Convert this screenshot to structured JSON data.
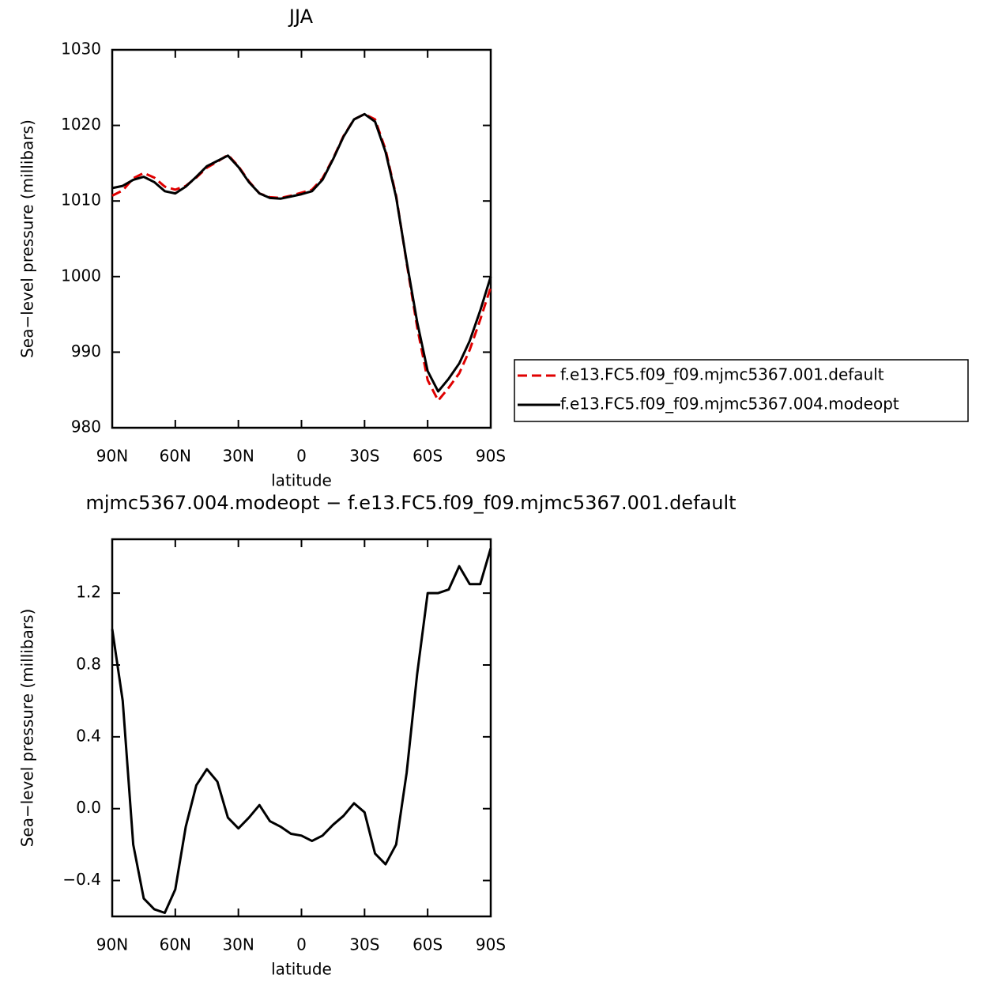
{
  "chart_data": [
    {
      "type": "line",
      "title": "JJA",
      "xlabel": "latitude",
      "ylabel": "Sea−level pressure (millibars)",
      "x": [
        90,
        85,
        80,
        75,
        70,
        65,
        60,
        55,
        50,
        45,
        40,
        35,
        30,
        25,
        20,
        15,
        10,
        5,
        0,
        -5,
        -10,
        -15,
        -20,
        -25,
        -30,
        -35,
        -40,
        -45,
        -50,
        -55,
        -60,
        -65,
        -70,
        -75,
        -80,
        -85,
        -90
      ],
      "xlim": [
        90,
        -90
      ],
      "xticks": [
        {
          "value": 90,
          "label": "90N"
        },
        {
          "value": 60,
          "label": "60N"
        },
        {
          "value": 30,
          "label": "30N"
        },
        0,
        {
          "value": -30,
          "label": "30S"
        },
        {
          "value": -60,
          "label": "60S"
        },
        {
          "value": -90,
          "label": "90S"
        }
      ],
      "ylim": [
        980,
        1030
      ],
      "yticks": [
        980,
        990,
        1000,
        1010,
        1020,
        1030
      ],
      "legend": "right",
      "series": [
        {
          "name": "f.e13.FC5.f09_f09.mjmc5367.001.default",
          "color": "#e00000",
          "style": "dashed",
          "values": [
            1010.7,
            1011.4,
            1013.0,
            1013.7,
            1013.1,
            1011.9,
            1011.5,
            1012.0,
            1013.1,
            1014.4,
            1015.2,
            1016.1,
            1014.6,
            1012.6,
            1011.0,
            1010.5,
            1010.4,
            1010.7,
            1011.1,
            1011.5,
            1013.0,
            1015.6,
            1018.6,
            1020.8,
            1021.5,
            1020.8,
            1016.8,
            1010.7,
            1001.8,
            993.3,
            986.3,
            983.6,
            985.3,
            987.2,
            990.3,
            994.3,
            998.6
          ]
        },
        {
          "name": "f.e13.FC5.f09_f09.mjmc5367.004.modeopt",
          "color": "#000000",
          "style": "solid",
          "values": [
            1011.7,
            1012.0,
            1012.8,
            1013.2,
            1012.5,
            1011.3,
            1011.0,
            1011.9,
            1013.2,
            1014.6,
            1015.3,
            1016.0,
            1014.5,
            1012.5,
            1011.0,
            1010.4,
            1010.3,
            1010.6,
            1010.9,
            1011.3,
            1012.8,
            1015.5,
            1018.5,
            1020.8,
            1021.5,
            1020.5,
            1016.5,
            1010.5,
            1002.0,
            994.0,
            987.5,
            984.8,
            986.5,
            988.5,
            991.5,
            995.5,
            1000.0
          ]
        }
      ]
    },
    {
      "type": "line",
      "title": "mjmc5367.004.modeopt − f.e13.FC5.f09_f09.mjmc5367.001.default",
      "xlabel": "latitude",
      "ylabel": "Sea−level pressure (millibars)",
      "x": [
        90,
        85,
        80,
        75,
        70,
        65,
        60,
        55,
        50,
        45,
        40,
        35,
        30,
        25,
        20,
        15,
        10,
        5,
        0,
        -5,
        -10,
        -15,
        -20,
        -25,
        -30,
        -35,
        -40,
        -45,
        -50,
        -55,
        -60,
        -65,
        -70,
        -75,
        -80,
        -85,
        -90
      ],
      "xlim": [
        90,
        -90
      ],
      "xticks": [
        {
          "value": 90,
          "label": "90N"
        },
        {
          "value": 60,
          "label": "60N"
        },
        {
          "value": 30,
          "label": "30N"
        },
        0,
        {
          "value": -30,
          "label": "30S"
        },
        {
          "value": -60,
          "label": "60S"
        },
        {
          "value": -90,
          "label": "90S"
        }
      ],
      "ylim": [
        -0.6,
        1.5
      ],
      "yticks": [
        {
          "value": -0.4,
          "label": "−0.4"
        },
        {
          "value": 0,
          "label": "0.0"
        },
        0.4,
        0.8,
        1.2
      ],
      "series": [
        {
          "color": "#000000",
          "style": "solid",
          "values": [
            1.0,
            0.6,
            -0.2,
            -0.5,
            -0.56,
            -0.58,
            -0.45,
            -0.1,
            0.13,
            0.22,
            0.15,
            -0.05,
            -0.11,
            -0.05,
            0.02,
            -0.07,
            -0.1,
            -0.14,
            -0.15,
            -0.18,
            -0.15,
            -0.09,
            -0.04,
            0.03,
            -0.02,
            -0.25,
            -0.31,
            -0.2,
            0.2,
            0.75,
            1.2,
            1.2,
            1.22,
            1.35,
            1.25,
            1.25,
            1.45
          ]
        }
      ]
    }
  ]
}
